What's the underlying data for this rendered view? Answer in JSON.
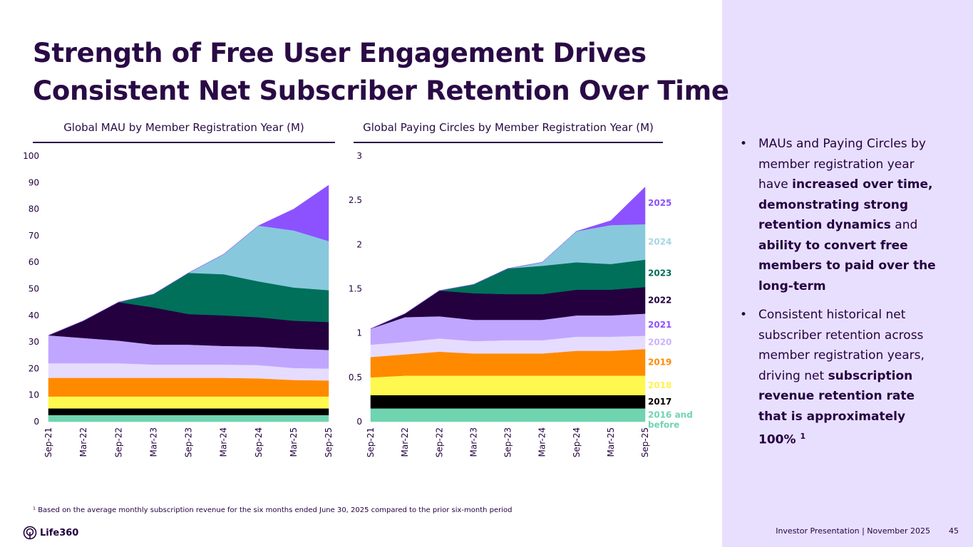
{
  "title_line1": "Strength of Free User Engagement Drives",
  "title_line2": "Consistent Net Subscriber Retention Over Time",
  "bullets": [
    {
      "parts": [
        [
          "MAUs and Paying Circles by member registration year have ",
          false
        ],
        [
          "increased over time, demonstrating strong retention dynamics",
          true
        ],
        [
          " and ",
          false
        ],
        [
          "ability to convert free members to paid over the long-term",
          true
        ]
      ]
    },
    {
      "parts": [
        [
          "Consistent historical net subscriber retention across member registration years, driving net ",
          false
        ],
        [
          "subscription revenue retention rate that is approximately 100% ",
          true
        ],
        [
          "1",
          true
        ]
      ]
    }
  ],
  "footnote": "¹ Based on the average monthly subscription revenue for the six months ended June 30, 2025 compared to the prior six-month period",
  "logo_text": "Life360",
  "footer_text": "Investor Presentation  | November 2025",
  "page_number": "45",
  "colors": {
    "2016 and before": "#6fd4b0",
    "2017": "#000000",
    "2018": "#fff84f",
    "2019": "#ff8a00",
    "2020": "#e6dcff",
    "2021": "#c1a6ff",
    "2022": "#24003f",
    "2023": "#00705a",
    "2024": "#88c8dc",
    "2025": "#8c52ff"
  },
  "label_colors": {
    "2016 and before": "#6fd4b0",
    "2017": "#000000",
    "2018": "#fff24f",
    "2019": "#ff8a00",
    "2020": "#c9b3ff",
    "2021": "#8c52ff",
    "2022": "#24003f",
    "2023": "#006e56",
    "2024": "#a5d6e3",
    "2025": "#8c52ff"
  },
  "chart_data": [
    {
      "type": "area",
      "stacked": true,
      "title": "Global MAU by Member Registration Year (M)",
      "categories": [
        "Sep-21",
        "Mar-22",
        "Sep-22",
        "Mar-23",
        "Sep-23",
        "Mar-24",
        "Sep-24",
        "Mar-25",
        "Sep-25"
      ],
      "ylim": [
        0,
        100
      ],
      "yticks": [
        "0",
        "10",
        "20",
        "30",
        "40",
        "50",
        "60",
        "70",
        "80",
        "90",
        "100"
      ],
      "ytick_values": [
        0,
        10,
        20,
        30,
        40,
        50,
        60,
        70,
        80,
        90,
        100
      ],
      "legend": "none",
      "series": [
        {
          "name": "2016 and before",
          "values": [
            2.5,
            2.5,
            2.5,
            2.5,
            2.5,
            2.5,
            2.5,
            2.5,
            2.5
          ]
        },
        {
          "name": "2017",
          "values": [
            2.5,
            2.5,
            2.5,
            2.5,
            2.5,
            2.5,
            2.5,
            2.5,
            2.5
          ]
        },
        {
          "name": "2018",
          "values": [
            4.5,
            4.5,
            4.5,
            4.5,
            4.5,
            4.5,
            4.5,
            4.5,
            4.5
          ]
        },
        {
          "name": "2019",
          "values": [
            7,
            7,
            7,
            7,
            7,
            7,
            6.8,
            6.2,
            6
          ]
        },
        {
          "name": "2020",
          "values": [
            5.5,
            5.5,
            5.5,
            5,
            5,
            5,
            5,
            4.5,
            4.5
          ]
        },
        {
          "name": "2021",
          "values": [
            10.5,
            9.5,
            8.5,
            7.5,
            7.5,
            7,
            7,
            7.3,
            7
          ]
        },
        {
          "name": "2022",
          "values": [
            0,
            6.5,
            14.5,
            14,
            11.5,
            11.5,
            11,
            10.5,
            10.5
          ]
        },
        {
          "name": "2023",
          "values": [
            0,
            0,
            0,
            5,
            15.5,
            15.5,
            13.5,
            12.5,
            12
          ]
        },
        {
          "name": "2024",
          "values": [
            0,
            0,
            0,
            0,
            0,
            7.5,
            21,
            21.5,
            18.5
          ]
        },
        {
          "name": "2025",
          "values": [
            0,
            0,
            0,
            0,
            0,
            0,
            0,
            8,
            21
          ]
        }
      ]
    },
    {
      "type": "area",
      "stacked": true,
      "title": "Global Paying Circles by Member Registration Year (M)",
      "categories": [
        "Sep-21",
        "Mar-22",
        "Sep-22",
        "Mar-23",
        "Sep-23",
        "Mar-24",
        "Sep-24",
        "Mar-25",
        "Sep-25"
      ],
      "ylim": [
        0,
        3
      ],
      "yticks": [
        "0",
        "0.5",
        "1",
        "1.5",
        "2",
        "2.5",
        "3"
      ],
      "ytick_values": [
        0,
        0.5,
        1,
        1.5,
        2,
        2.5,
        3
      ],
      "legend": "right",
      "series": [
        {
          "name": "2016 and before",
          "values": [
            0.15,
            0.15,
            0.15,
            0.15,
            0.15,
            0.15,
            0.15,
            0.15,
            0.15
          ]
        },
        {
          "name": "2017",
          "values": [
            0.15,
            0.15,
            0.15,
            0.15,
            0.15,
            0.15,
            0.15,
            0.15,
            0.15
          ]
        },
        {
          "name": "2018",
          "values": [
            0.2,
            0.22,
            0.22,
            0.22,
            0.22,
            0.22,
            0.22,
            0.22,
            0.22
          ]
        },
        {
          "name": "2019",
          "values": [
            0.23,
            0.24,
            0.27,
            0.25,
            0.25,
            0.25,
            0.28,
            0.28,
            0.3
          ]
        },
        {
          "name": "2020",
          "values": [
            0.14,
            0.14,
            0.15,
            0.14,
            0.15,
            0.15,
            0.16,
            0.16,
            0.15
          ]
        },
        {
          "name": "2021",
          "values": [
            0.18,
            0.28,
            0.25,
            0.24,
            0.23,
            0.23,
            0.24,
            0.24,
            0.25
          ]
        },
        {
          "name": "2022",
          "values": [
            0,
            0.04,
            0.29,
            0.3,
            0.29,
            0.29,
            0.29,
            0.29,
            0.3
          ]
        },
        {
          "name": "2023",
          "values": [
            0,
            0,
            0,
            0.1,
            0.29,
            0.32,
            0.31,
            0.29,
            0.31
          ]
        },
        {
          "name": "2024",
          "values": [
            0,
            0,
            0,
            0,
            0,
            0.04,
            0.35,
            0.44,
            0.4
          ]
        },
        {
          "name": "2025",
          "values": [
            0,
            0,
            0,
            0,
            0,
            0,
            0,
            0.05,
            0.42
          ]
        }
      ]
    }
  ]
}
